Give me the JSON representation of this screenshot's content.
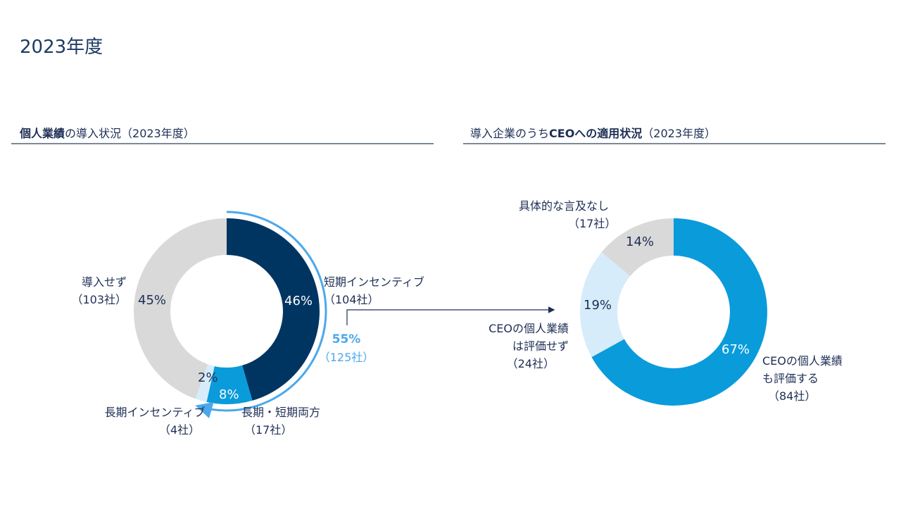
{
  "page_title": "2023年度",
  "colors": {
    "dark_navy": "#003562",
    "blue": "#0a9bdb",
    "light_blue": "#d6ecfb",
    "gray": "#d9d9d9",
    "arc": "#4ba8ec",
    "text": "#1e2f55"
  },
  "chart_data": [
    {
      "type": "pie",
      "title_bold": "個人業績",
      "title_rest": "の導入状況（2023年度）",
      "slices": [
        {
          "label": "短期インセンティブ",
          "count": "（104社）",
          "value": 46,
          "pct": "46%",
          "color": "#003562"
        },
        {
          "label": "長期・短期両方",
          "count": "（17社）",
          "value": 8,
          "pct": "8%",
          "color": "#0a9bdb"
        },
        {
          "label": "長期インセンティブ",
          "count": "（4社）",
          "value": 2,
          "pct": "2%",
          "color": "#d6ecfb"
        },
        {
          "label": "導入せず",
          "count": "（103社）",
          "value": 45,
          "pct": "45%",
          "color": "#d9d9d9"
        }
      ],
      "bracket": {
        "pct": "55%",
        "count": "（125社）",
        "value": 55
      }
    },
    {
      "type": "pie",
      "title_rest": "導入企業のうち",
      "title_bold": "CEOへの適用状況",
      "title_tail": "（2023年度）",
      "slices": [
        {
          "label_line1": "CEOの個人業績",
          "label_line2": "も評価する",
          "count": "（84社）",
          "value": 67,
          "pct": "67%",
          "color": "#0a9bdb"
        },
        {
          "label_line1": "CEOの個人業績",
          "label_line2": "は評価せず",
          "count": "（24社）",
          "value": 19,
          "pct": "19%",
          "color": "#d6ecfb"
        },
        {
          "label": "具体的な言及なし",
          "count": "（17社）",
          "value": 14,
          "pct": "14%",
          "color": "#d9d9d9"
        }
      ]
    }
  ]
}
